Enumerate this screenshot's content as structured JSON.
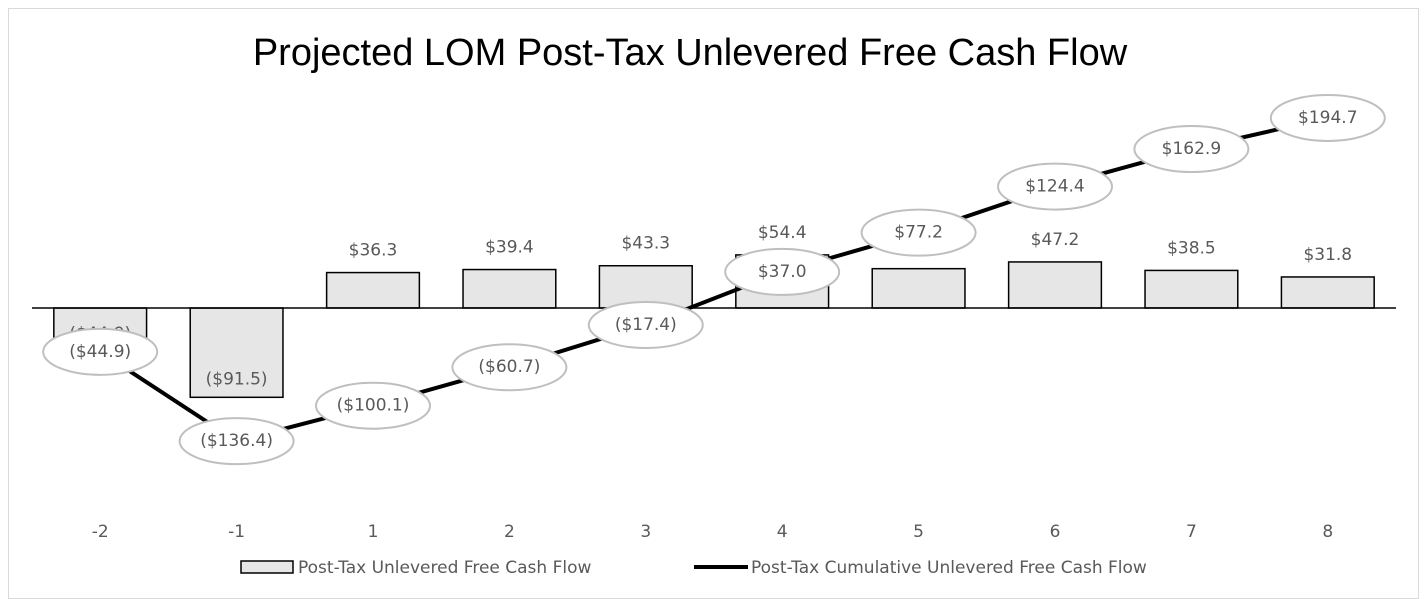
{
  "chart_data": {
    "type": "combo",
    "title": "Projected LOM Post-Tax Unlevered Free Cash Flow",
    "categories": [
      "-2",
      "-1",
      "1",
      "2",
      "3",
      "4",
      "5",
      "6",
      "7",
      "8"
    ],
    "series": [
      {
        "name": "Post-Tax Unlevered Free Cash Flow",
        "type": "bar",
        "color": "#e7e6e6",
        "values": [
          -44.9,
          -91.5,
          36.3,
          39.4,
          43.3,
          54.4,
          40.3,
          47.2,
          38.5,
          31.8
        ],
        "value_labels": [
          "($44.9)",
          "($91.5)",
          "$36.3",
          "$39.4",
          "$43.3",
          "$54.4",
          "$40.3",
          "$47.2",
          "$38.5",
          "$31.8"
        ]
      },
      {
        "name": "Post-Tax Cumulative Unlevered Free Cash Flow",
        "type": "line",
        "color": "#000000",
        "values": [
          -44.9,
          -136.4,
          -100.1,
          -60.7,
          -17.4,
          37.0,
          77.2,
          124.4,
          162.9,
          194.7
        ],
        "value_labels": [
          "($44.9)",
          "($136.4)",
          "($100.1)",
          "($60.7)",
          "($17.4)",
          "$37.0",
          "$77.2",
          "$124.4",
          "$162.9",
          "$194.7"
        ]
      }
    ],
    "legend": "bottom"
  }
}
